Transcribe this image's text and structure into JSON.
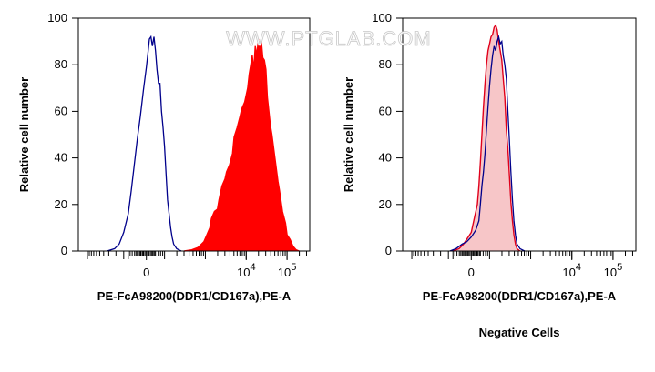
{
  "watermark": "WWW.PTGLAB.COM",
  "colors": {
    "stain": "#ff0000",
    "control": "#00008b",
    "neg_fill": "#f7c6c8",
    "neg_line": "#e0001b"
  },
  "chart_data": [
    {
      "type": "area",
      "title": "",
      "xlabel": "PE-FcA98200(DDR1/CD167a),PE-A",
      "ylabel": "Relative cell number",
      "ylim": [
        0,
        100
      ],
      "yticks": [
        "0",
        "20",
        "40",
        "60",
        "80",
        "100"
      ],
      "xticks": [
        {
          "base": "0",
          "exp": "",
          "value": 0
        },
        {
          "base": "10",
          "exp": "4",
          "value": 10000
        },
        {
          "base": "10",
          "exp": "5",
          "value": 100000
        }
      ],
      "grid": false,
      "series": [
        {
          "color": "#ff0000",
          "filled": true,
          "points": [
            [
              25,
              0
            ],
            [
              30,
              0.5
            ],
            [
              34,
              1.5
            ],
            [
              38,
              4
            ],
            [
              40,
              7
            ],
            [
              42,
              10
            ],
            [
              43,
              14
            ],
            [
              45,
              17
            ],
            [
              47,
              18
            ],
            [
              48,
              22
            ],
            [
              50,
              28
            ],
            [
              52,
              31
            ],
            [
              53,
              34
            ],
            [
              55,
              37
            ],
            [
              57,
              42
            ],
            [
              58,
              49
            ],
            [
              60,
              53
            ],
            [
              62,
              58
            ],
            [
              63,
              61
            ],
            [
              65,
              64
            ],
            [
              67,
              70
            ],
            [
              68,
              76
            ],
            [
              69,
              80
            ],
            [
              70,
              84
            ],
            [
              71,
              78
            ],
            [
              72,
              88
            ],
            [
              73,
              84
            ],
            [
              74,
              91
            ],
            [
              75,
              86
            ],
            [
              76,
              90
            ],
            [
              77,
              83
            ],
            [
              78,
              82
            ],
            [
              79,
              78
            ],
            [
              80,
              66
            ],
            [
              82,
              54
            ],
            [
              83,
              50
            ],
            [
              85,
              40
            ],
            [
              87,
              30
            ],
            [
              88,
              26
            ],
            [
              90,
              17
            ],
            [
              92,
              12
            ],
            [
              93,
              7
            ],
            [
              95,
              5
            ],
            [
              97,
              2
            ],
            [
              99,
              0.5
            ],
            [
              101,
              0
            ]
          ]
        },
        {
          "color": "#00008b",
          "filled": false,
          "points": [
            [
              -26,
              0
            ],
            [
              -21,
              1
            ],
            [
              -18,
              3
            ],
            [
              -15,
              8
            ],
            [
              -12,
              16
            ],
            [
              -10,
              26
            ],
            [
              -8,
              37
            ],
            [
              -6,
              48
            ],
            [
              -4,
              58
            ],
            [
              -2,
              69
            ],
            [
              0,
              79
            ],
            [
              1,
              85
            ],
            [
              2,
              91
            ],
            [
              3,
              92
            ],
            [
              4,
              88
            ],
            [
              5,
              92
            ],
            [
              6,
              86
            ],
            [
              7,
              78
            ],
            [
              8,
              72
            ],
            [
              9,
              72
            ],
            [
              10,
              60
            ],
            [
              11,
              53
            ],
            [
              12,
              45
            ],
            [
              13,
              33
            ],
            [
              14,
              22
            ],
            [
              15,
              16
            ],
            [
              16,
              10
            ],
            [
              17,
              6
            ],
            [
              18,
              3
            ],
            [
              20,
              1
            ],
            [
              23,
              0
            ]
          ]
        }
      ]
    },
    {
      "type": "area",
      "title": "Negative Cells",
      "xlabel": "PE-FcA98200(DDR1/CD167a),PE-A",
      "ylabel": "Relative cell number",
      "ylim": [
        0,
        100
      ],
      "yticks": [
        "0",
        "20",
        "40",
        "60",
        "80",
        "100"
      ],
      "xticks": [
        {
          "base": "0",
          "exp": "",
          "value": 0
        },
        {
          "base": "10",
          "exp": "4",
          "value": 10000
        },
        {
          "base": "10",
          "exp": "5",
          "value": 100000
        }
      ],
      "grid": false,
      "series": [
        {
          "color": "#e0001b",
          "filled": true,
          "fill": "#f7c6c8",
          "points": [
            [
              -12,
              0
            ],
            [
              -8,
              1
            ],
            [
              -5,
              3
            ],
            [
              -3,
              5
            ],
            [
              0,
              8
            ],
            [
              2,
              14
            ],
            [
              4,
              20
            ],
            [
              5,
              28
            ],
            [
              6,
              38
            ],
            [
              7,
              50
            ],
            [
              8,
              62
            ],
            [
              9,
              72
            ],
            [
              10,
              80
            ],
            [
              11,
              86
            ],
            [
              12,
              89
            ],
            [
              13,
              92
            ],
            [
              14,
              93
            ],
            [
              15,
              96
            ],
            [
              16,
              97
            ],
            [
              17,
              95
            ],
            [
              18,
              90
            ],
            [
              19,
              86
            ],
            [
              20,
              82
            ],
            [
              21,
              74
            ],
            [
              22,
              66
            ],
            [
              23,
              52
            ],
            [
              24,
              44
            ],
            [
              25,
              33
            ],
            [
              26,
              21
            ],
            [
              27,
              13
            ],
            [
              28,
              7
            ],
            [
              29,
              3
            ],
            [
              30,
              1
            ],
            [
              32,
              0
            ]
          ]
        },
        {
          "color": "#00008b",
          "filled": false,
          "points": [
            [
              -14,
              0
            ],
            [
              -10,
              1
            ],
            [
              -6,
              3
            ],
            [
              -3,
              4
            ],
            [
              0,
              6
            ],
            [
              3,
              9
            ],
            [
              5,
              13
            ],
            [
              6,
              20
            ],
            [
              7,
              28
            ],
            [
              8,
              34
            ],
            [
              9,
              42
            ],
            [
              10,
              52
            ],
            [
              11,
              62
            ],
            [
              12,
              71
            ],
            [
              13,
              78
            ],
            [
              14,
              84
            ],
            [
              15,
              88
            ],
            [
              16,
              86
            ],
            [
              17,
              90
            ],
            [
              18,
              92
            ],
            [
              19,
              89
            ],
            [
              20,
              90
            ],
            [
              21,
              84
            ],
            [
              22,
              80
            ],
            [
              23,
              74
            ],
            [
              24,
              60
            ],
            [
              25,
              48
            ],
            [
              26,
              34
            ],
            [
              27,
              22
            ],
            [
              28,
              13
            ],
            [
              29,
              7
            ],
            [
              30,
              3
            ],
            [
              32,
              1
            ],
            [
              35,
              0
            ]
          ]
        }
      ]
    }
  ]
}
